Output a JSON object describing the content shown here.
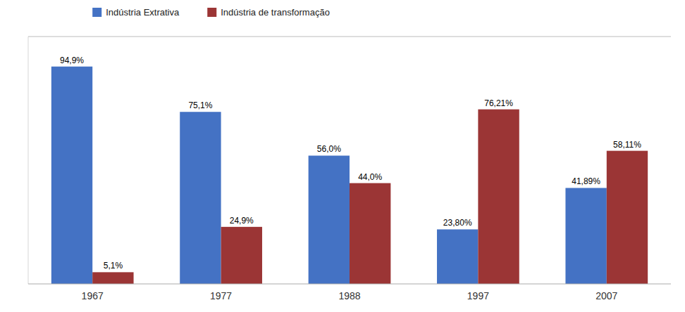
{
  "chart_data": {
    "type": "bar",
    "categories": [
      "1967",
      "1977",
      "1988",
      "1997",
      "2007"
    ],
    "series": [
      {
        "name": "Indústria Extrativa",
        "color": "#4472C4",
        "values": [
          94.9,
          75.1,
          56.0,
          23.8,
          41.89
        ],
        "value_labels": [
          "94,9%",
          "75,1%",
          "56,0%",
          "23,80%",
          "41,89%"
        ]
      },
      {
        "name": "Indústria de transformação",
        "color": "#9B3535",
        "values": [
          5.1,
          24.9,
          44.0,
          76.21,
          58.11
        ],
        "value_labels": [
          "5,1%",
          "24,9%",
          "44,0%",
          "76,21%",
          "58,11%"
        ]
      }
    ],
    "ylim": [
      0,
      108
    ],
    "grid": false,
    "data_labels": true,
    "tick_labels": "x",
    "legend": "top"
  }
}
